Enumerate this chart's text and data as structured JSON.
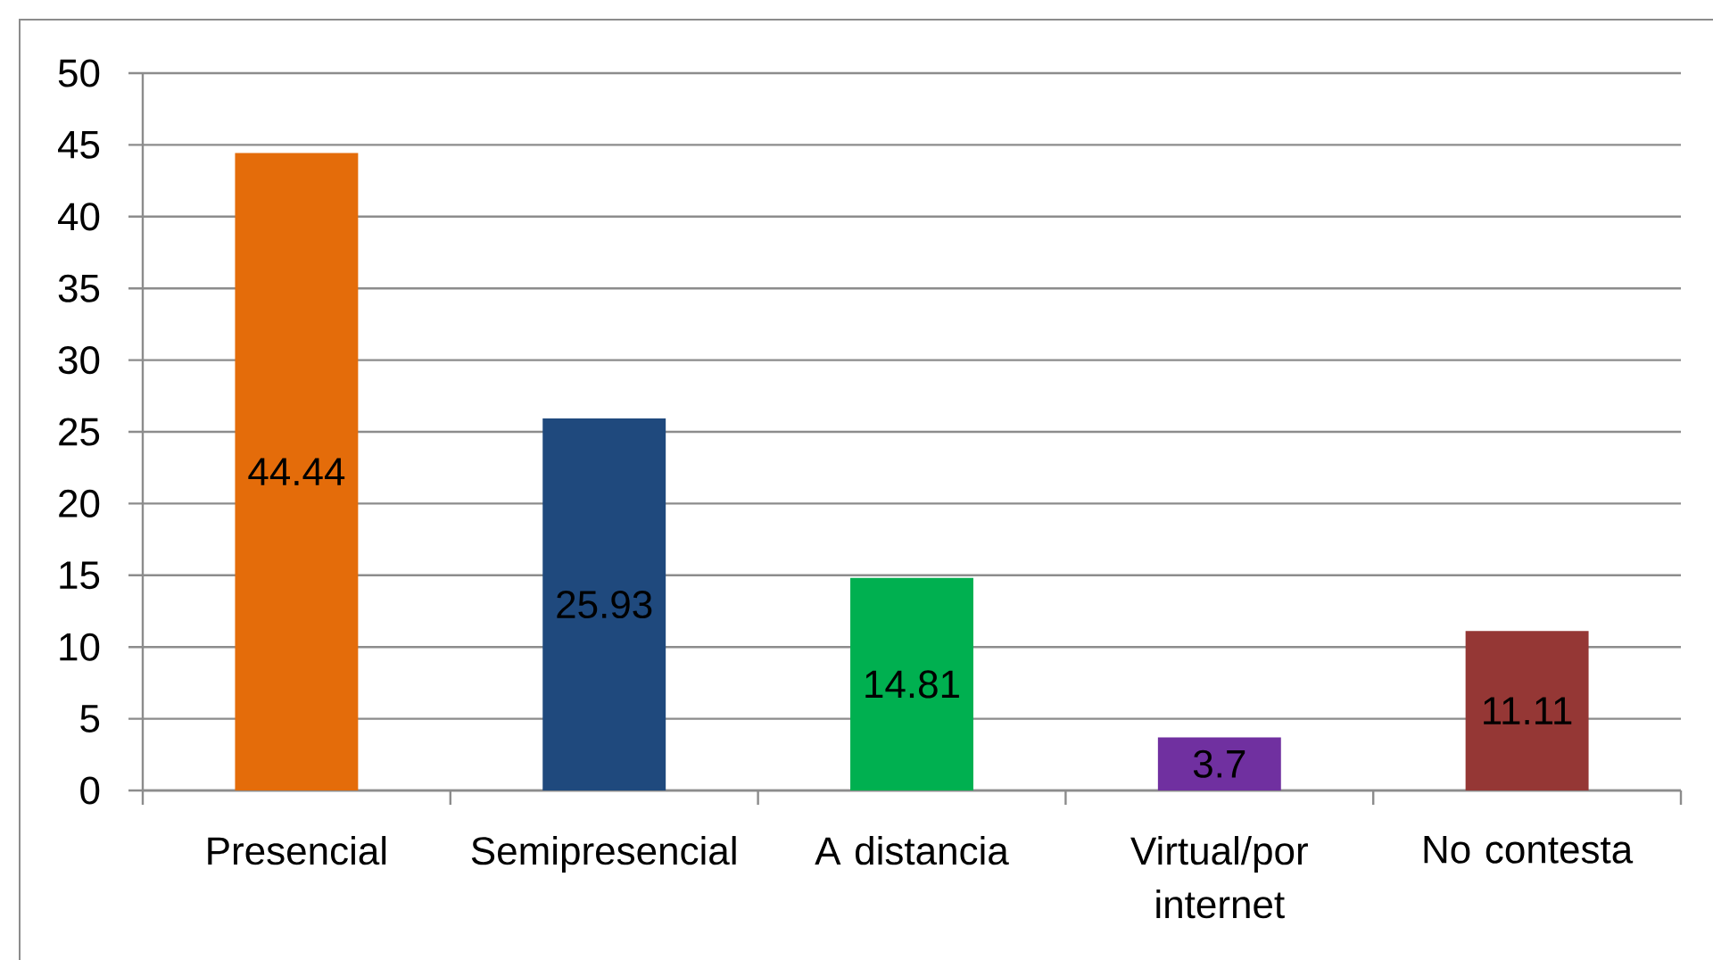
{
  "chart_data": {
    "type": "bar",
    "categories": [
      "Presencial",
      "Semipresencial",
      "A distancia",
      "Virtual/por internet",
      "No contesta"
    ],
    "values": [
      44.44,
      25.93,
      14.81,
      3.7,
      11.11
    ],
    "colors": [
      "#e46c0a",
      "#1f497d",
      "#00b050",
      "#7030a0",
      "#953735"
    ],
    "ylim": [
      0,
      50
    ],
    "yticks": [
      0,
      5,
      10,
      15,
      20,
      25,
      30,
      35,
      40,
      45,
      50
    ],
    "grid": "y",
    "data_labels": true
  }
}
